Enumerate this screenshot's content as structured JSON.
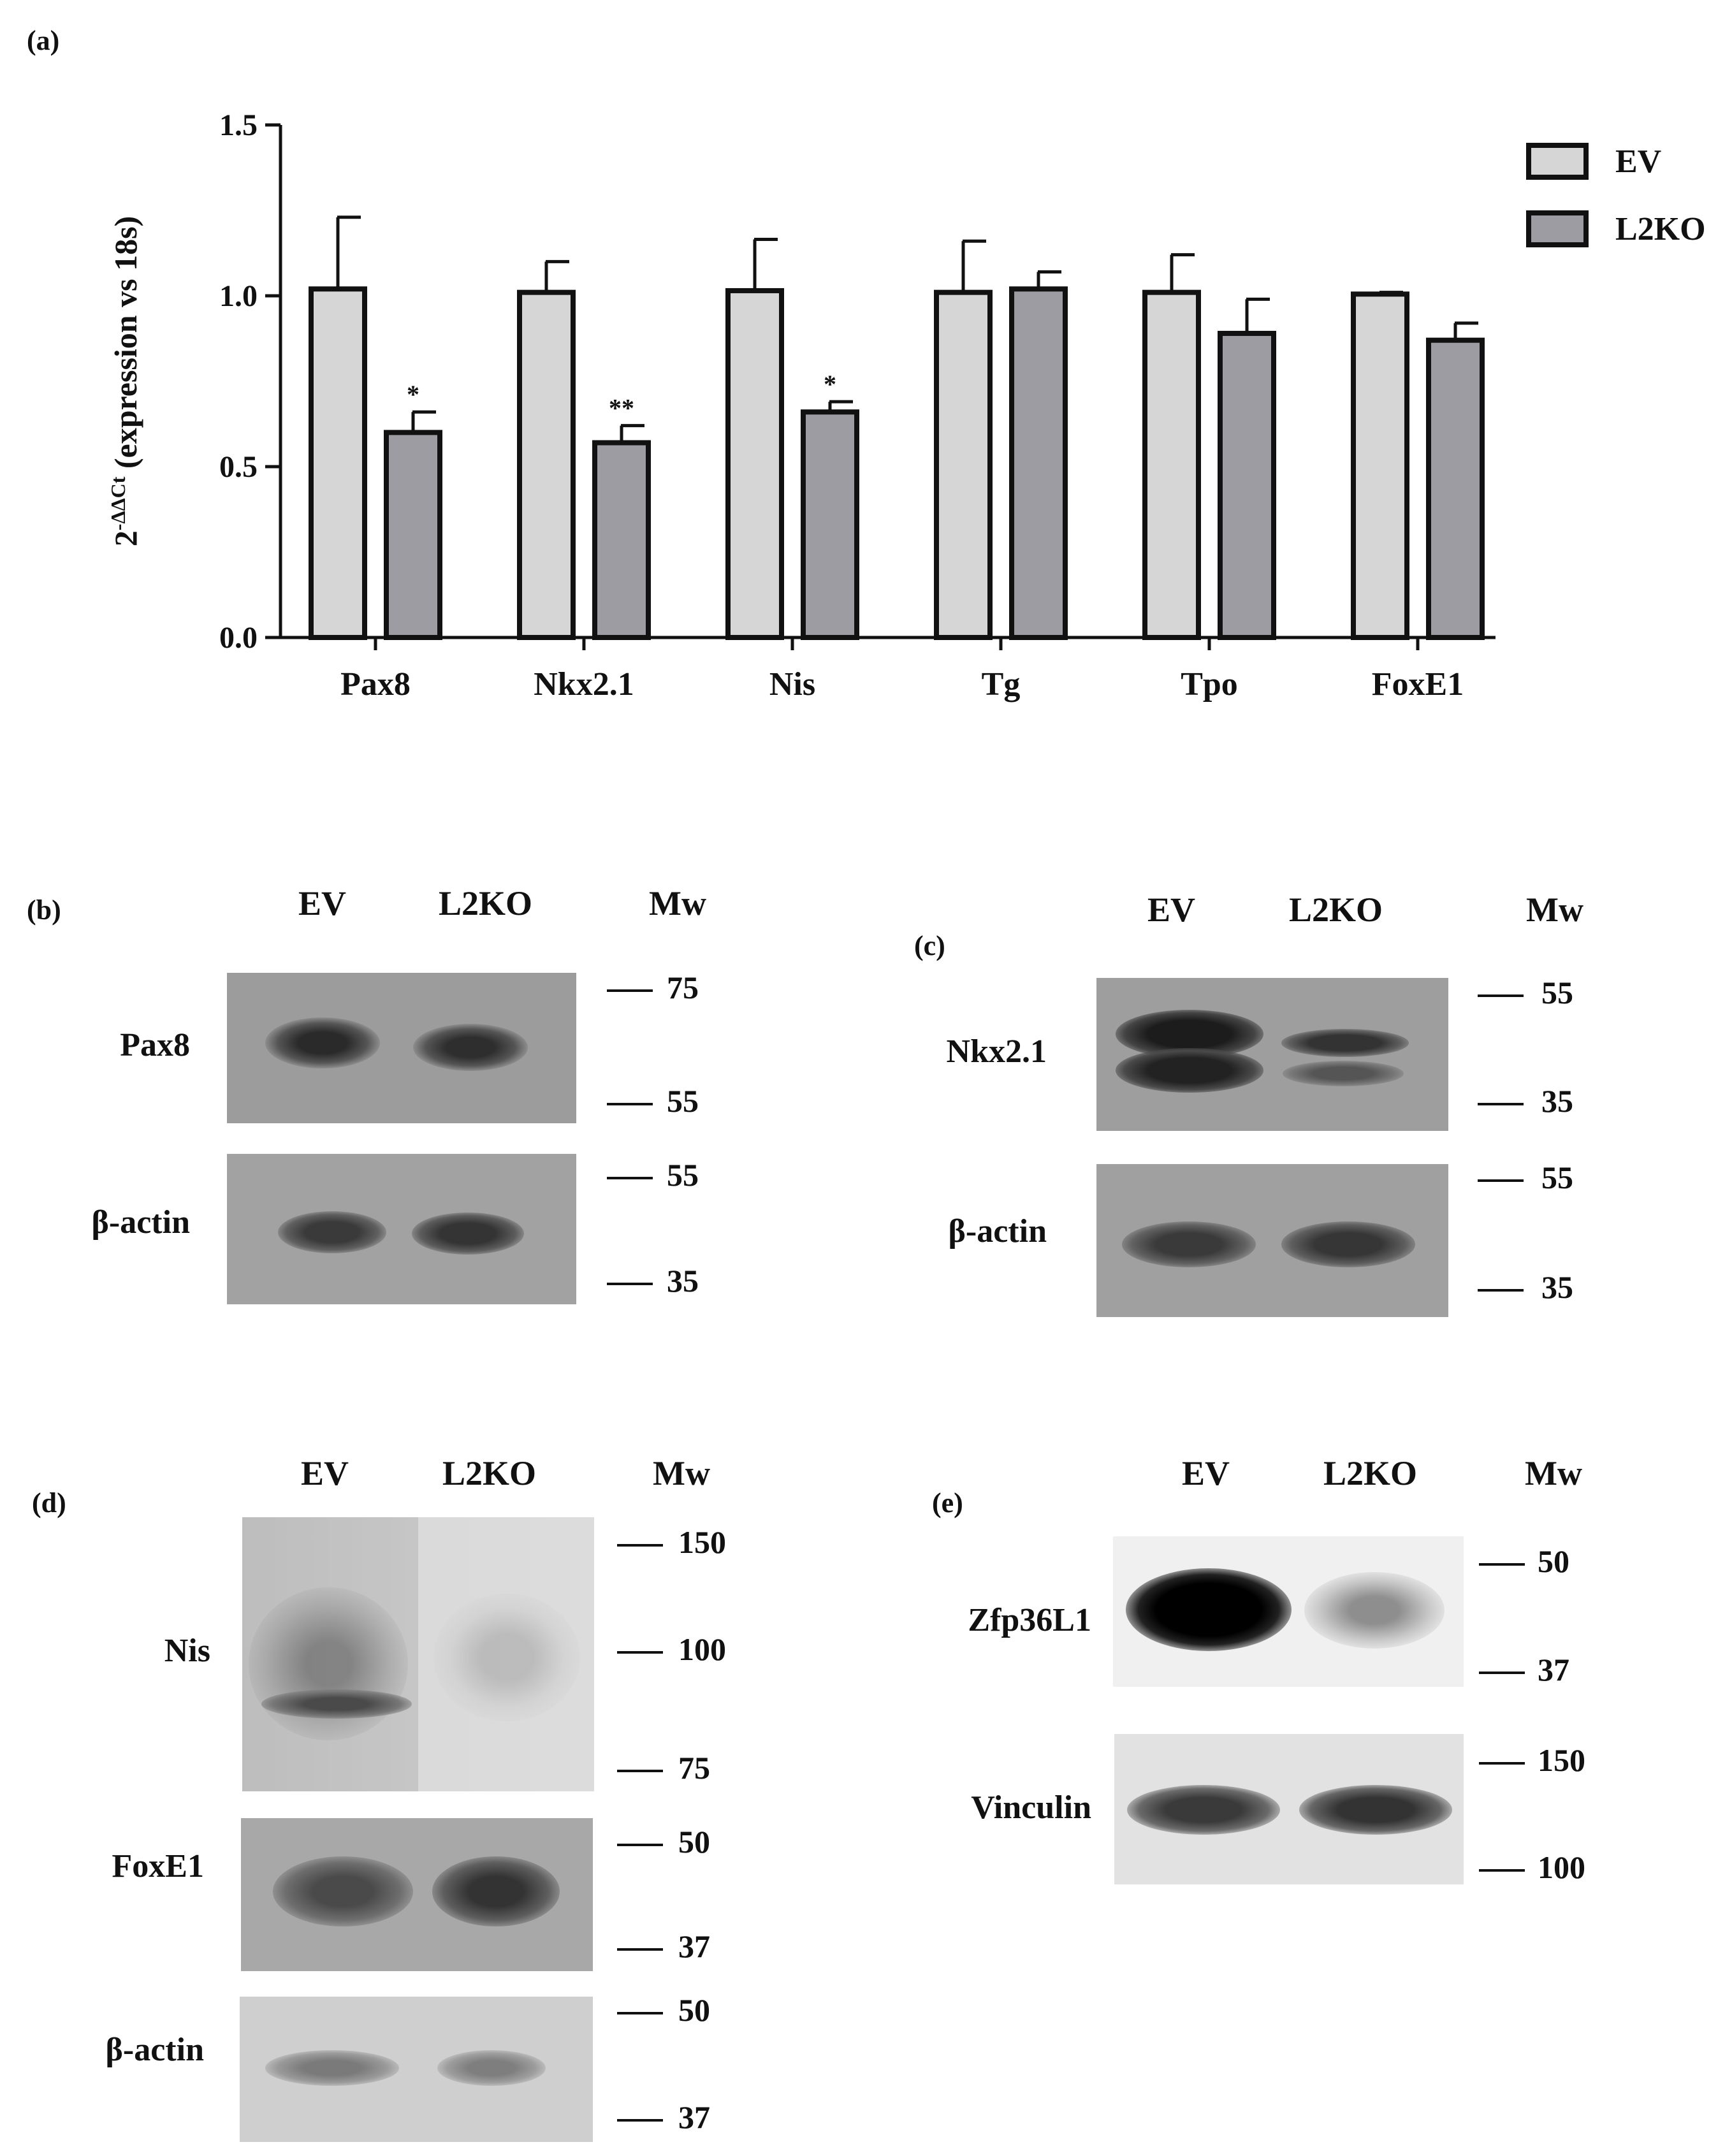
{
  "panels": {
    "a": "(a)",
    "b": "(b)",
    "c": "(c)",
    "d": "(d)",
    "e": "(e)"
  },
  "chart_data": {
    "type": "bar",
    "categories": [
      "Pax8",
      "Nkx2.1",
      "Nis",
      "Tg",
      "Tpo",
      "FoxE1"
    ],
    "series": [
      {
        "name": "EV",
        "values": [
          1.02,
          1.01,
          1.015,
          1.01,
          1.01,
          1.005
        ],
        "errors": [
          0.21,
          0.09,
          0.15,
          0.15,
          0.11,
          0.005
        ],
        "color": "#d6d6d6"
      },
      {
        "name": "L2KO",
        "values": [
          0.6,
          0.57,
          0.66,
          1.02,
          0.89,
          0.87
        ],
        "errors": [
          0.06,
          0.05,
          0.03,
          0.05,
          0.1,
          0.05
        ],
        "color": "#9c9ca2"
      }
    ],
    "significance": [
      "*",
      "**",
      "*",
      "",
      "",
      ""
    ],
    "ylim": [
      0,
      1.5
    ],
    "yticks": [
      "0.0",
      "0.5",
      "1.0",
      "1.5"
    ],
    "ylabel_base": "2",
    "ylabel_sup": "-ΔΔCt",
    "ylabel_rest": " (expression vs 18s)",
    "xlabel": "",
    "legend": [
      "EV",
      "L2KO"
    ],
    "legend_position": "top-right",
    "grid": false
  },
  "blots": {
    "lanes": {
      "ev": "EV",
      "l2ko": "L2KO",
      "mw": "Mw"
    },
    "b": {
      "rows": [
        "Pax8",
        "β-actin"
      ],
      "markers": [
        "75",
        "55",
        "55",
        "35"
      ]
    },
    "c": {
      "rows": [
        "Nkx2.1",
        "β-actin"
      ],
      "markers": [
        "55",
        "35",
        "55",
        "35"
      ]
    },
    "d": {
      "rows": [
        "Nis",
        "FoxE1",
        "β-actin"
      ],
      "markers": [
        "150",
        "100",
        "75",
        "50",
        "37",
        "50",
        "37"
      ]
    },
    "e": {
      "rows": [
        "Zfp36L1",
        "Vinculin"
      ],
      "markers": [
        "50",
        "37",
        "150",
        "100"
      ]
    }
  }
}
